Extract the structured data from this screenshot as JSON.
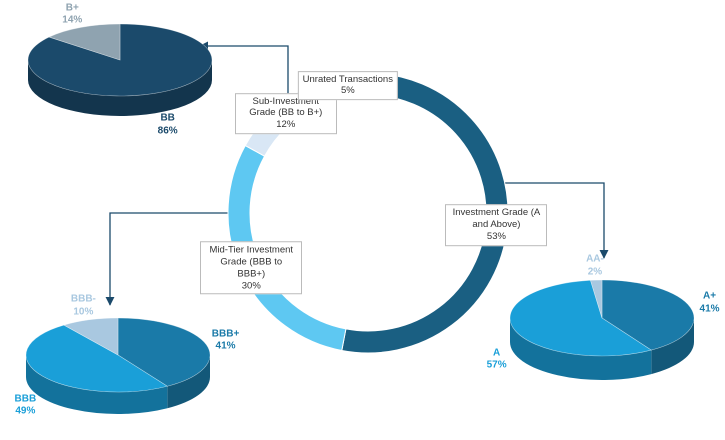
{
  "chart_data": [
    {
      "type": "donut",
      "categories": [
        "Investment Grade (A and Above)",
        "Mid-Tier Investment Grade (BBB to BBB+)",
        "Sub-Investment Grade (BB to B+)",
        "Unrated Transactions"
      ],
      "values": [
        53,
        30,
        12,
        5
      ],
      "value_labels": [
        "53%",
        "30%",
        "12%",
        "5%"
      ],
      "colors": [
        "#1a5f82",
        "#5ec8f2",
        "#d9e7f5",
        "#1b3a50"
      ]
    },
    {
      "type": "pie",
      "categories": [
        "BB",
        "B+"
      ],
      "values": [
        86,
        14
      ],
      "value_labels": [
        "86%",
        "14%"
      ],
      "colors": [
        "#1b4a6b",
        "#8fa3b0"
      ]
    },
    {
      "type": "pie",
      "categories": [
        "BBB+",
        "BBB",
        "BBB-"
      ],
      "values": [
        41,
        49,
        10
      ],
      "value_labels": [
        "41%",
        "49%",
        "10%"
      ],
      "colors": [
        "#1a7aa8",
        "#1a9fd8",
        "#a9c8e0"
      ]
    },
    {
      "type": "pie",
      "categories": [
        "A+",
        "A",
        "AA-"
      ],
      "values": [
        41,
        57,
        2
      ],
      "value_labels": [
        "41%",
        "57%",
        "2%"
      ],
      "colors": [
        "#1a7aa8",
        "#1a9fd8",
        "#a9c8e0"
      ]
    }
  ]
}
